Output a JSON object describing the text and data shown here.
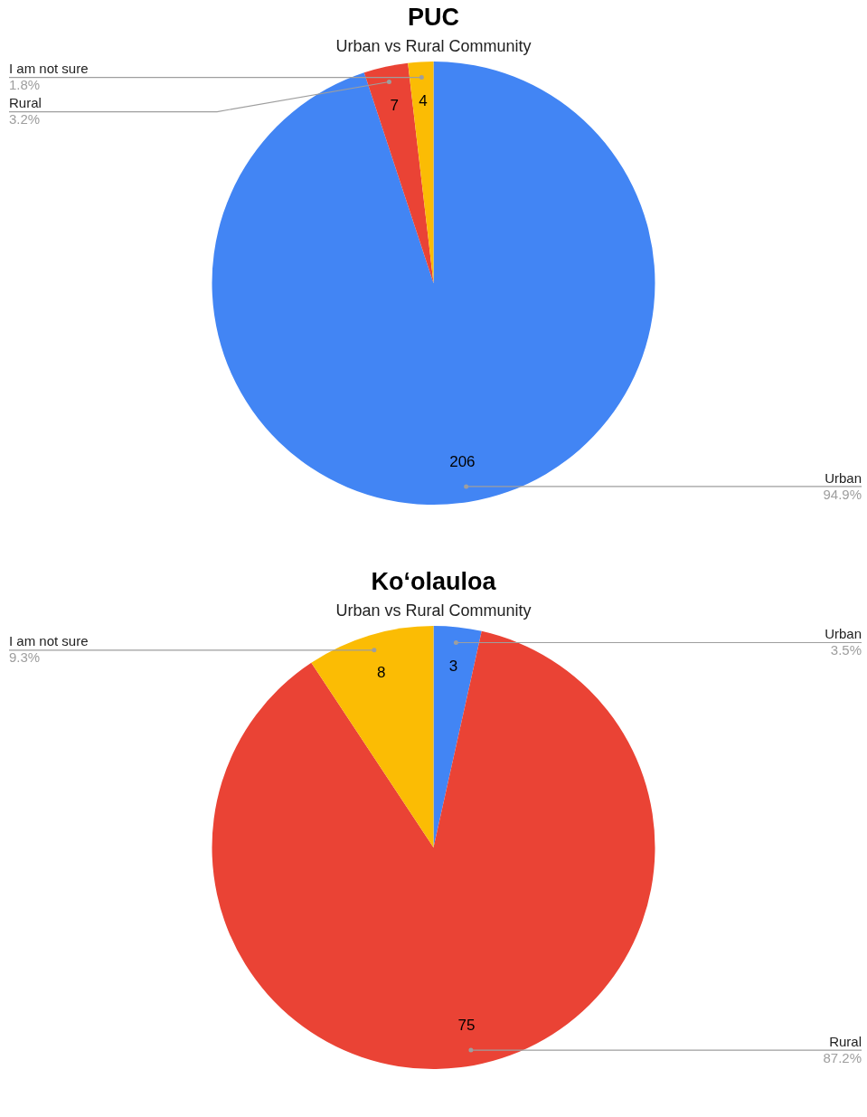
{
  "chart_data": [
    {
      "type": "pie",
      "title": "PUC",
      "subtitle": "Urban vs Rural Community",
      "categories": [
        "Urban",
        "Rural",
        "I am not sure"
      ],
      "values": [
        206,
        7,
        4
      ],
      "colors": [
        "#4285f4",
        "#ea4335",
        "#fbbc04"
      ],
      "data_labels": true,
      "annotations": [
        "94.9%",
        "3.2%",
        "1.8%"
      ],
      "legend": false
    },
    {
      "type": "pie",
      "title": "Koʻolauloa",
      "subtitle": "Urban vs Rural Community",
      "categories": [
        "Urban",
        "Rural",
        "I am not sure"
      ],
      "values": [
        3,
        75,
        8
      ],
      "colors": [
        "#4285f4",
        "#ea4335",
        "#fbbc04"
      ],
      "data_labels": true,
      "annotations": [
        "3.5%",
        "87.2%",
        "9.3%"
      ],
      "legend": false
    }
  ]
}
